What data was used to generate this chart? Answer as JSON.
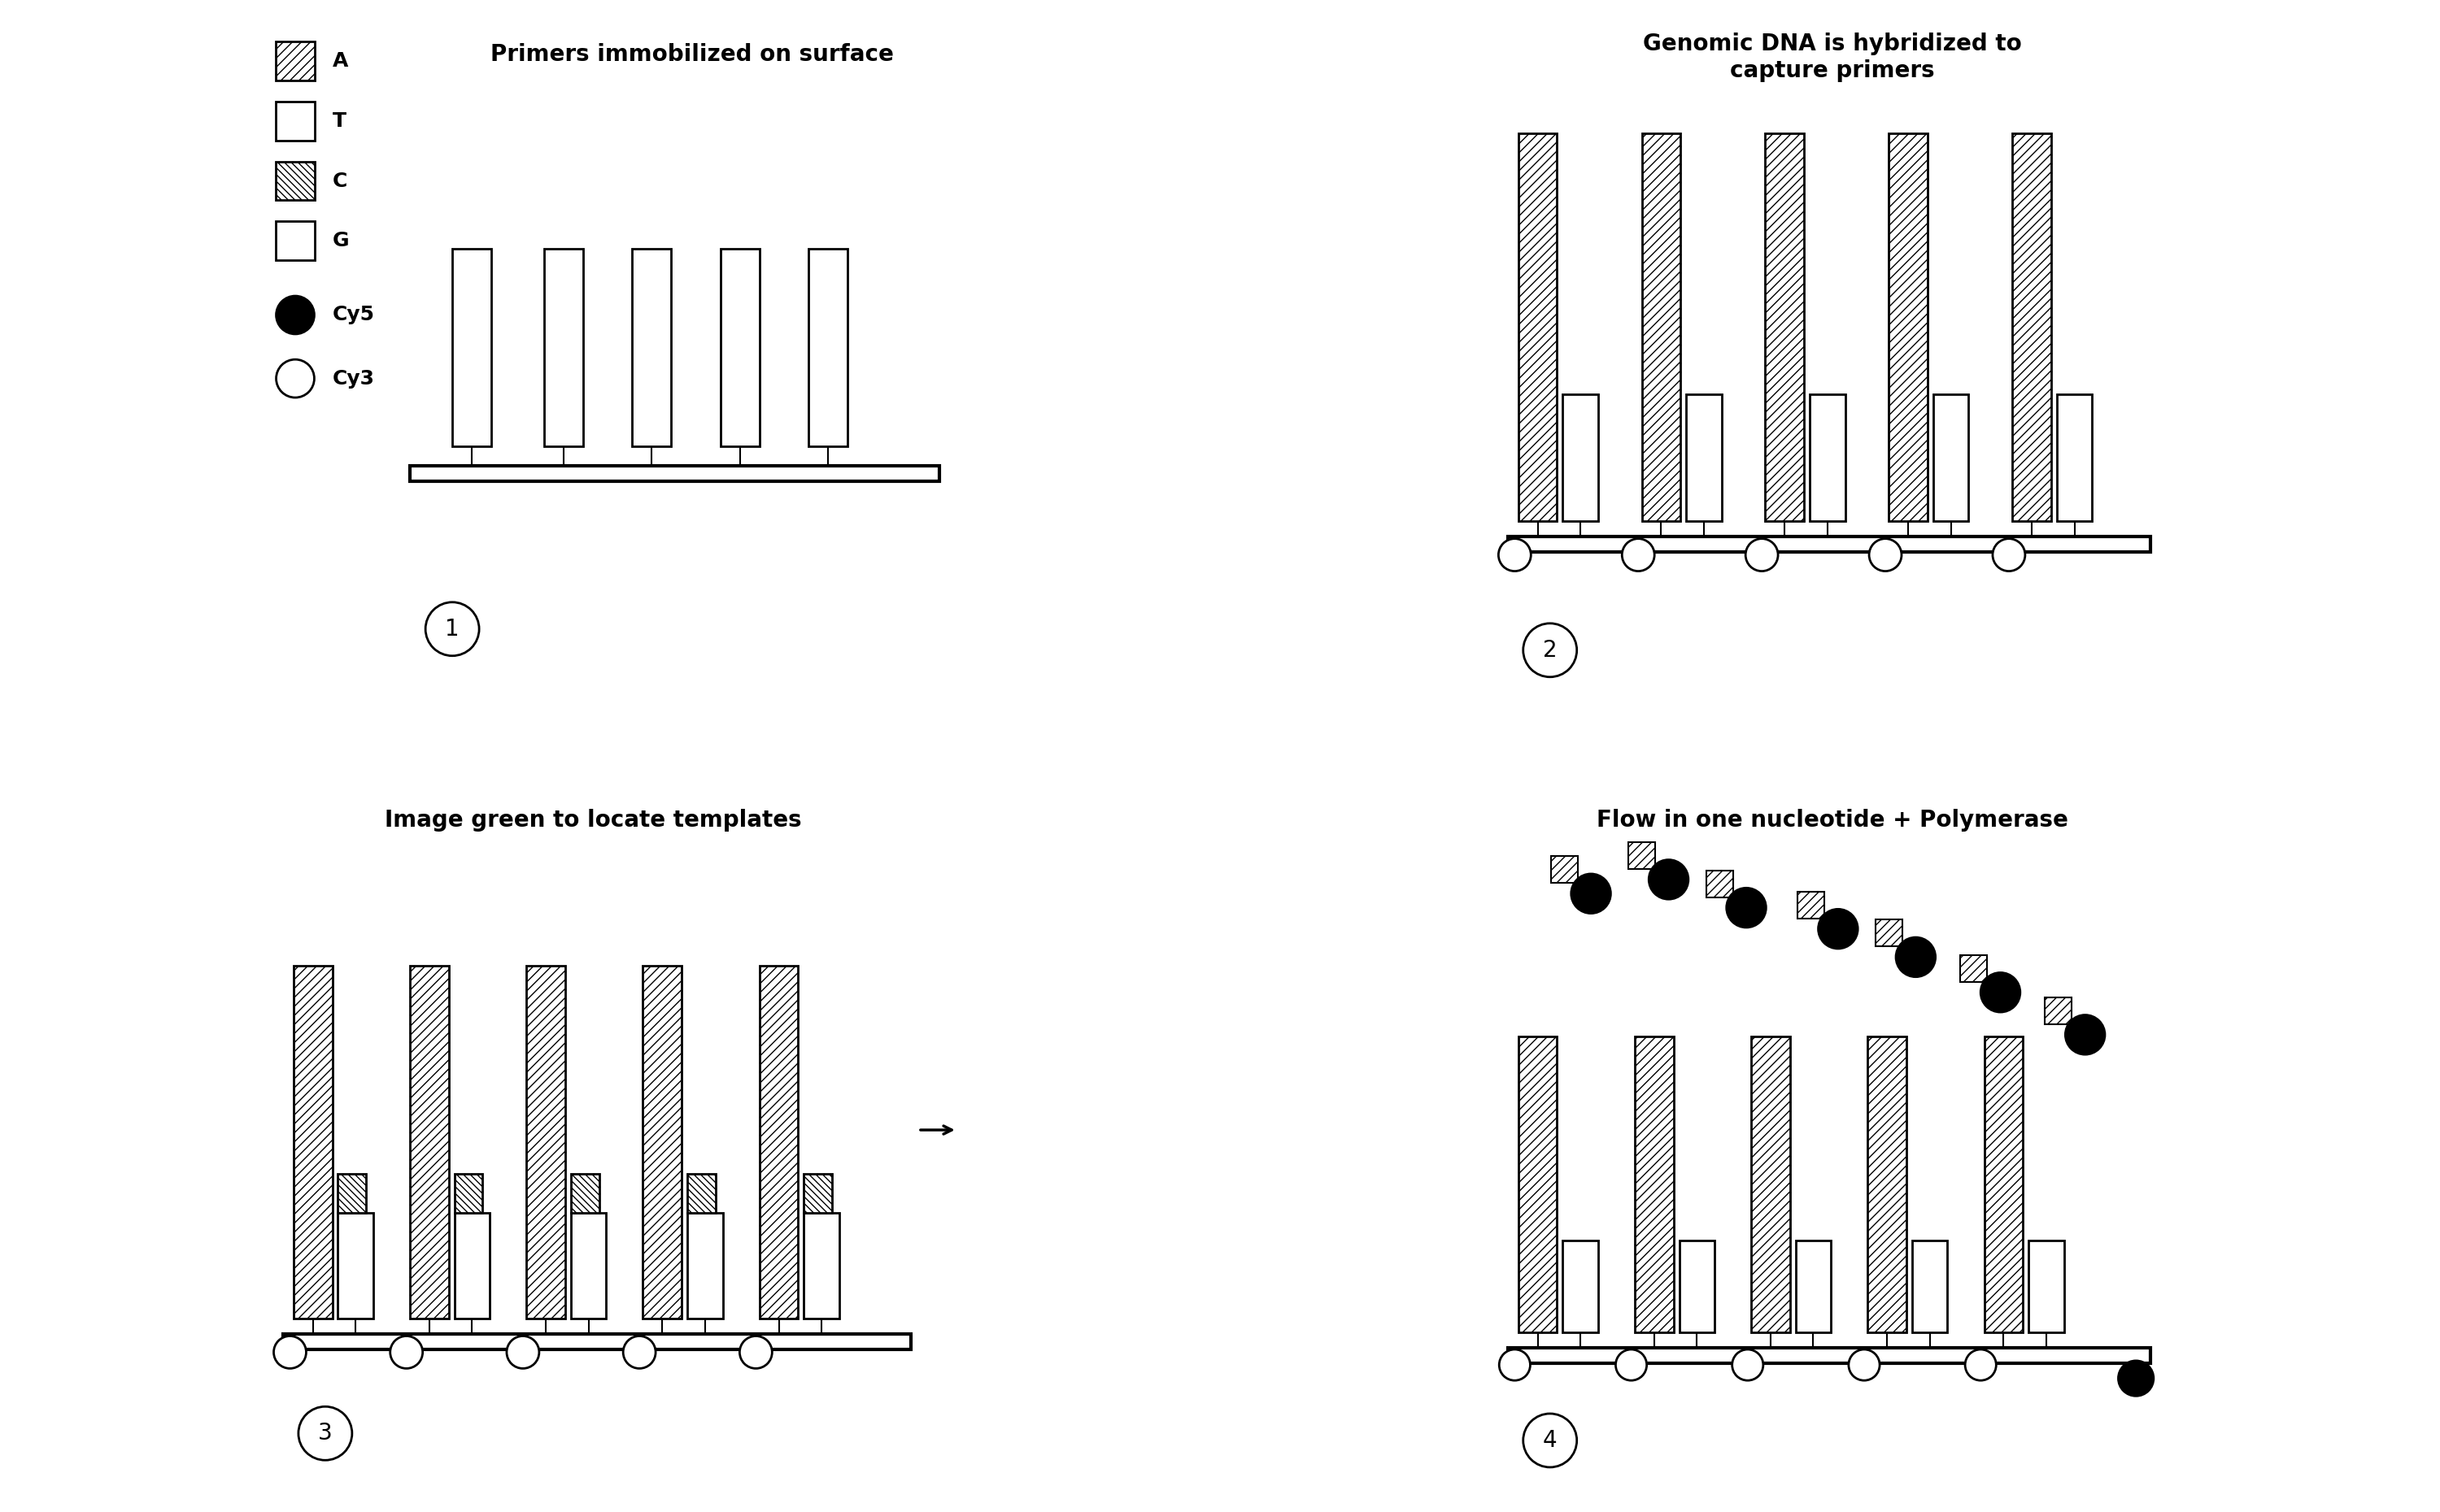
{
  "bg_color": "#ffffff",
  "panel_titles": [
    "Primers immobilized on surface",
    "Genomic DNA is hybridized to\ncapture primers",
    "Image green to locate templates",
    "Flow in one nucleotide + Polymerase"
  ],
  "panel_numbers": [
    "1",
    "2",
    "3",
    "4"
  ],
  "legend_labels": [
    "A",
    "T",
    "C",
    "G",
    "Cy5",
    "Cy3"
  ],
  "hatch_A": "///",
  "hatch_T": "N",
  "hatch_C": "\\\\\\\\",
  "hatch_G": "ZZ",
  "title_fontsize": 18,
  "label_fontsize": 16
}
